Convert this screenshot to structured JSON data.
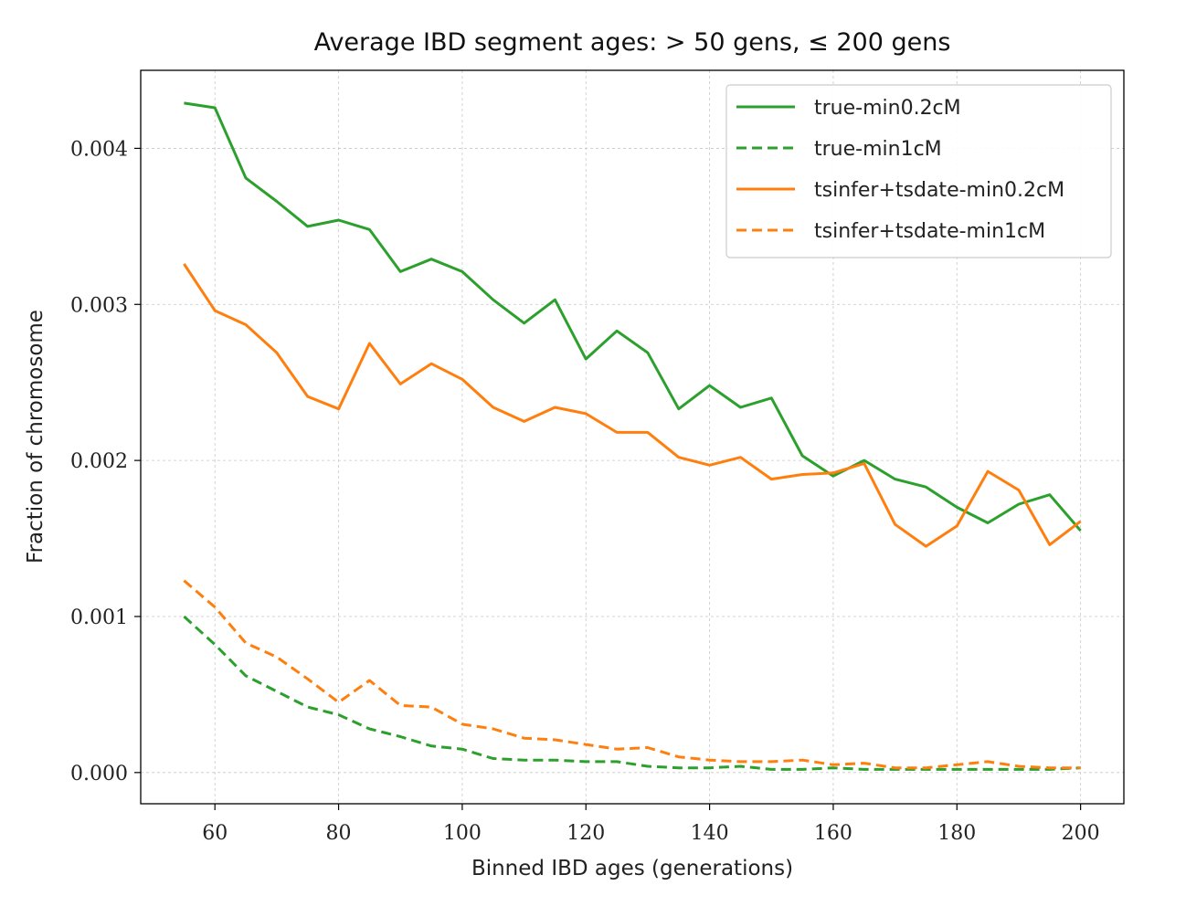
{
  "chart_data": {
    "type": "line",
    "title": "Average IBD segment ages: > 50 gens, ≤ 200 gens",
    "xlabel": "Binned IBD ages (generations)",
    "ylabel": "Fraction of chromosome",
    "xlim": [
      48,
      207
    ],
    "ylim": [
      -0.0002,
      0.0045
    ],
    "xticks": [
      60,
      80,
      100,
      120,
      140,
      160,
      180,
      200
    ],
    "xtick_labels": [
      "60",
      "80",
      "100",
      "120",
      "140",
      "160",
      "180",
      "200"
    ],
    "yticks": [
      0.0,
      0.001,
      0.002,
      0.003,
      0.004
    ],
    "ytick_labels": [
      "0.000",
      "0.001",
      "0.002",
      "0.003",
      "0.004"
    ],
    "grid": true,
    "legend_position": "top-right",
    "x": [
      55,
      60,
      65,
      70,
      75,
      80,
      85,
      90,
      95,
      100,
      105,
      110,
      115,
      120,
      125,
      130,
      135,
      140,
      145,
      150,
      155,
      160,
      165,
      170,
      175,
      180,
      185,
      190,
      195,
      200
    ],
    "series": [
      {
        "name": "true-min0.2cM",
        "color": "#2ca02c",
        "dashed": false,
        "values": [
          0.00429,
          0.00426,
          0.00381,
          0.00366,
          0.0035,
          0.00354,
          0.00348,
          0.00321,
          0.00329,
          0.00321,
          0.00303,
          0.00288,
          0.00303,
          0.00265,
          0.00283,
          0.00269,
          0.00233,
          0.00248,
          0.00234,
          0.0024,
          0.00203,
          0.0019,
          0.002,
          0.00188,
          0.00183,
          0.0017,
          0.0016,
          0.00172,
          0.00178,
          0.00155
        ]
      },
      {
        "name": "true-min1cM",
        "color": "#2ca02c",
        "dashed": true,
        "values": [
          0.001,
          0.00082,
          0.00062,
          0.00052,
          0.00042,
          0.00037,
          0.00028,
          0.00023,
          0.00017,
          0.00015,
          9e-05,
          8e-05,
          8e-05,
          7e-05,
          7e-05,
          4e-05,
          3e-05,
          3e-05,
          4e-05,
          2e-05,
          2e-05,
          3e-05,
          2e-05,
          2e-05,
          2e-05,
          2e-05,
          2e-05,
          2e-05,
          2e-05,
          3e-05
        ]
      },
      {
        "name": "tsinfer+tsdate-min0.2cM",
        "color": "#ff7f0e",
        "dashed": false,
        "values": [
          0.00326,
          0.00296,
          0.00287,
          0.00269,
          0.00241,
          0.00233,
          0.00275,
          0.00249,
          0.00262,
          0.00252,
          0.00234,
          0.00225,
          0.00234,
          0.0023,
          0.00218,
          0.00218,
          0.00202,
          0.00197,
          0.00202,
          0.00188,
          0.00191,
          0.00192,
          0.00198,
          0.00159,
          0.00145,
          0.00158,
          0.00193,
          0.00181,
          0.00146,
          0.00161
        ]
      },
      {
        "name": "tsinfer+tsdate-min1cM",
        "color": "#ff7f0e",
        "dashed": true,
        "values": [
          0.00123,
          0.00106,
          0.00083,
          0.00074,
          0.0006,
          0.00045,
          0.00059,
          0.00043,
          0.00042,
          0.00031,
          0.00028,
          0.00022,
          0.00021,
          0.00018,
          0.00015,
          0.00016,
          0.0001,
          8e-05,
          7e-05,
          7e-05,
          8e-05,
          5e-05,
          6e-05,
          3e-05,
          3e-05,
          5e-05,
          7e-05,
          4e-05,
          3e-05,
          3e-05
        ]
      }
    ]
  }
}
